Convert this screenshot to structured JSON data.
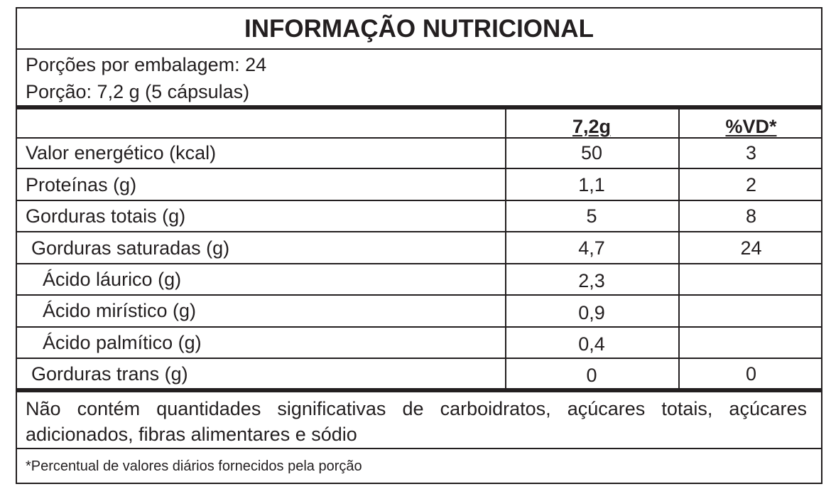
{
  "title": "INFORMAÇÃO NUTRICIONAL",
  "servings_per_package": "Porções por embalagem: 24",
  "serving_size": "Porção: 7,2 g (5 cápsulas)",
  "columns": [
    "7,2g",
    "%VD*"
  ],
  "rows": [
    {
      "name": "Valor energético (kcal)",
      "amount": "50",
      "dv": "3"
    },
    {
      "name": "Proteínas (g)",
      "amount": "1,1",
      "dv": "2"
    },
    {
      "name": "Gorduras totais (g)",
      "amount": "5",
      "dv": "8"
    },
    {
      "name": "Gorduras saturadas (g)",
      "amount": "4,7",
      "dv": "24"
    },
    {
      "name": "Ácido láurico (g)",
      "amount": "2,3",
      "dv": ""
    },
    {
      "name": "Ácido mirístico (g)",
      "amount": "0,9",
      "dv": ""
    },
    {
      "name": "Ácido palmítico (g)",
      "amount": "0,4",
      "dv": ""
    },
    {
      "name": "Gorduras trans (g)",
      "amount": "0",
      "dv": "0"
    }
  ],
  "note": "Não contém quantidades significativas de carboidratos, açúcares totais, açúcares adicionados, fibras alimentares e sódio",
  "footnote": "*Percentual de valores diários fornecidos pela porção"
}
